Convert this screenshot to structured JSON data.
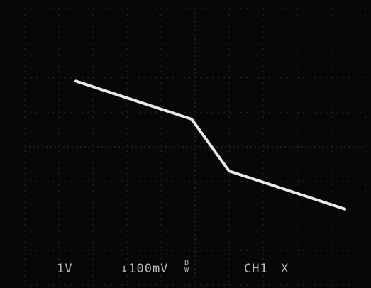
{
  "screen": {
    "channel_scale": "1V",
    "trigger_level": "↓100mV",
    "bandwidth_mark": "B W",
    "channel": "CH1",
    "mode": "X"
  },
  "chart_data": {
    "type": "line",
    "title": "",
    "xlabel": "",
    "ylabel": "",
    "grid": true,
    "divisions": {
      "x": 10,
      "y": 8
    },
    "xlim": [
      -5,
      5
    ],
    "ylim": [
      -4,
      4
    ],
    "series": [
      {
        "x": [
          -3.5,
          -0.1,
          1.0,
          4.4
        ],
        "y": [
          1.9,
          0.8,
          -0.7,
          -1.8
        ]
      }
    ]
  }
}
